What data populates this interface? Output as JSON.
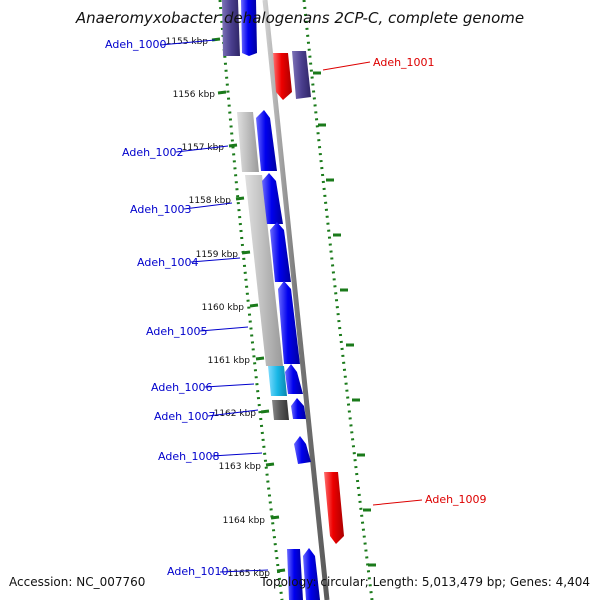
{
  "title": "Anaeromyxobacter dehalogenans 2CP-C, complete genome",
  "footer": {
    "accession": "Accession: NC_007760",
    "summary": "Topology: circular; Length: 5,013,479 bp; Genes: 4,404"
  },
  "colors": {
    "label_forward": "#0000cc",
    "label_reverse": "#dd0000",
    "dotted_track": "#1a7a1a",
    "backbone": "#777777",
    "gene_blue": "#0000ee",
    "gene_navy": "#4b3f8f",
    "gene_red": "#ee0000",
    "gene_gray": "#bbbbbb",
    "gene_cyan": "#19b7e6",
    "gene_dark": "#555555"
  },
  "ticks": [
    "1155 kbp",
    "1156 kbp",
    "1157 kbp",
    "1158 kbp",
    "1159 kbp",
    "1160 kbp",
    "1161 kbp",
    "1162 kbp",
    "1163 kbp",
    "1164 kbp",
    "1165 kbp"
  ],
  "gene_labels": [
    {
      "text": "Adeh_1000",
      "side": "left"
    },
    {
      "text": "Adeh_1001",
      "side": "right"
    },
    {
      "text": "Adeh_1002",
      "side": "left"
    },
    {
      "text": "Adeh_1003",
      "side": "left"
    },
    {
      "text": "Adeh_1004",
      "side": "left"
    },
    {
      "text": "Adeh_1005",
      "side": "left"
    },
    {
      "text": "Adeh_1006",
      "side": "left"
    },
    {
      "text": "Adeh_1007",
      "side": "left"
    },
    {
      "text": "Adeh_1008",
      "side": "left"
    },
    {
      "text": "Adeh_1009",
      "side": "right"
    },
    {
      "text": "Adeh_1010",
      "side": "left"
    }
  ]
}
